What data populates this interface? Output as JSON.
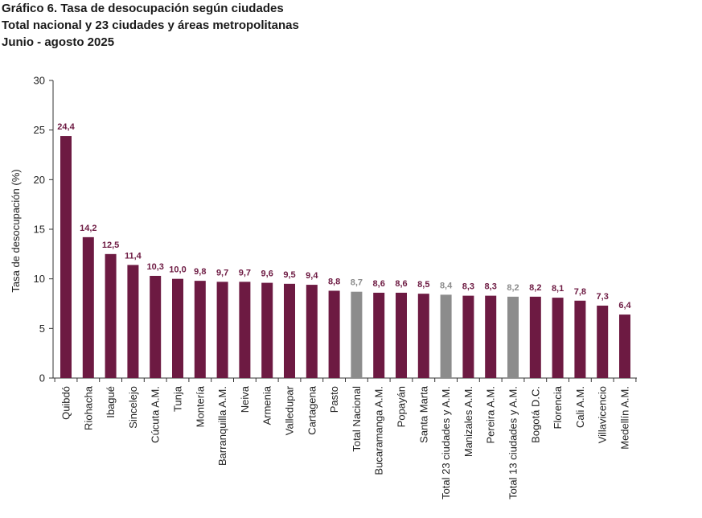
{
  "header": {
    "title_line1": "Gráfico 6. Tasa de desocupación según ciudades",
    "title_line2": "Total nacional y 23 ciudades y áreas metropolitanas",
    "title_line3": "Junio - agosto 2025"
  },
  "colors": {
    "city": "#6d1a42",
    "aggregate": "#8c8c8c",
    "axis": "#333333"
  },
  "chart_data": {
    "type": "bar",
    "title": "Tasa de desocupación según ciudades",
    "xlabel": "",
    "ylabel": "Tasa de desocupación (%)",
    "ylim": [
      0,
      30
    ],
    "yticks": [
      0,
      5,
      10,
      15,
      20,
      25,
      30
    ],
    "grid": false,
    "categories": [
      "Quibdó",
      "Riohacha",
      "Ibagué",
      "Sincelejo",
      "Cúcuta A.M.",
      "Tunja",
      "Montería",
      "Barranquilla A.M.",
      "Neiva",
      "Armenia",
      "Valledupar",
      "Cartagena",
      "Pasto",
      "Total Nacional",
      "Bucaramanga A.M.",
      "Popayán",
      "Santa Marta",
      "Total 23 ciudades y A.M.",
      "Manizales A.M.",
      "Pereira A.M.",
      "Total 13 ciudades y A.M.",
      "Bogotá D.C.",
      "Florencia",
      "Cali A.M.",
      "Villavicencio",
      "Medellín A.M."
    ],
    "values": [
      24.4,
      14.2,
      12.5,
      11.4,
      10.3,
      10.0,
      9.8,
      9.7,
      9.7,
      9.6,
      9.5,
      9.4,
      8.8,
      8.7,
      8.6,
      8.6,
      8.5,
      8.4,
      8.3,
      8.3,
      8.2,
      8.2,
      8.1,
      7.8,
      7.3,
      6.4
    ],
    "labels": [
      "24,4",
      "14,2",
      "12,5",
      "11,4",
      "10,3",
      "10,0",
      "9,8",
      "9,7",
      "9,7",
      "9,6",
      "9,5",
      "9,4",
      "8,8",
      "8,7",
      "8,6",
      "8,6",
      "8,5",
      "8,4",
      "8,3",
      "8,3",
      "8,2",
      "8,2",
      "8,1",
      "7,8",
      "7,3",
      "6,4"
    ],
    "highlight": [
      false,
      false,
      false,
      false,
      false,
      false,
      false,
      false,
      false,
      false,
      false,
      false,
      false,
      true,
      false,
      false,
      false,
      true,
      false,
      false,
      true,
      false,
      false,
      false,
      false,
      false
    ]
  }
}
